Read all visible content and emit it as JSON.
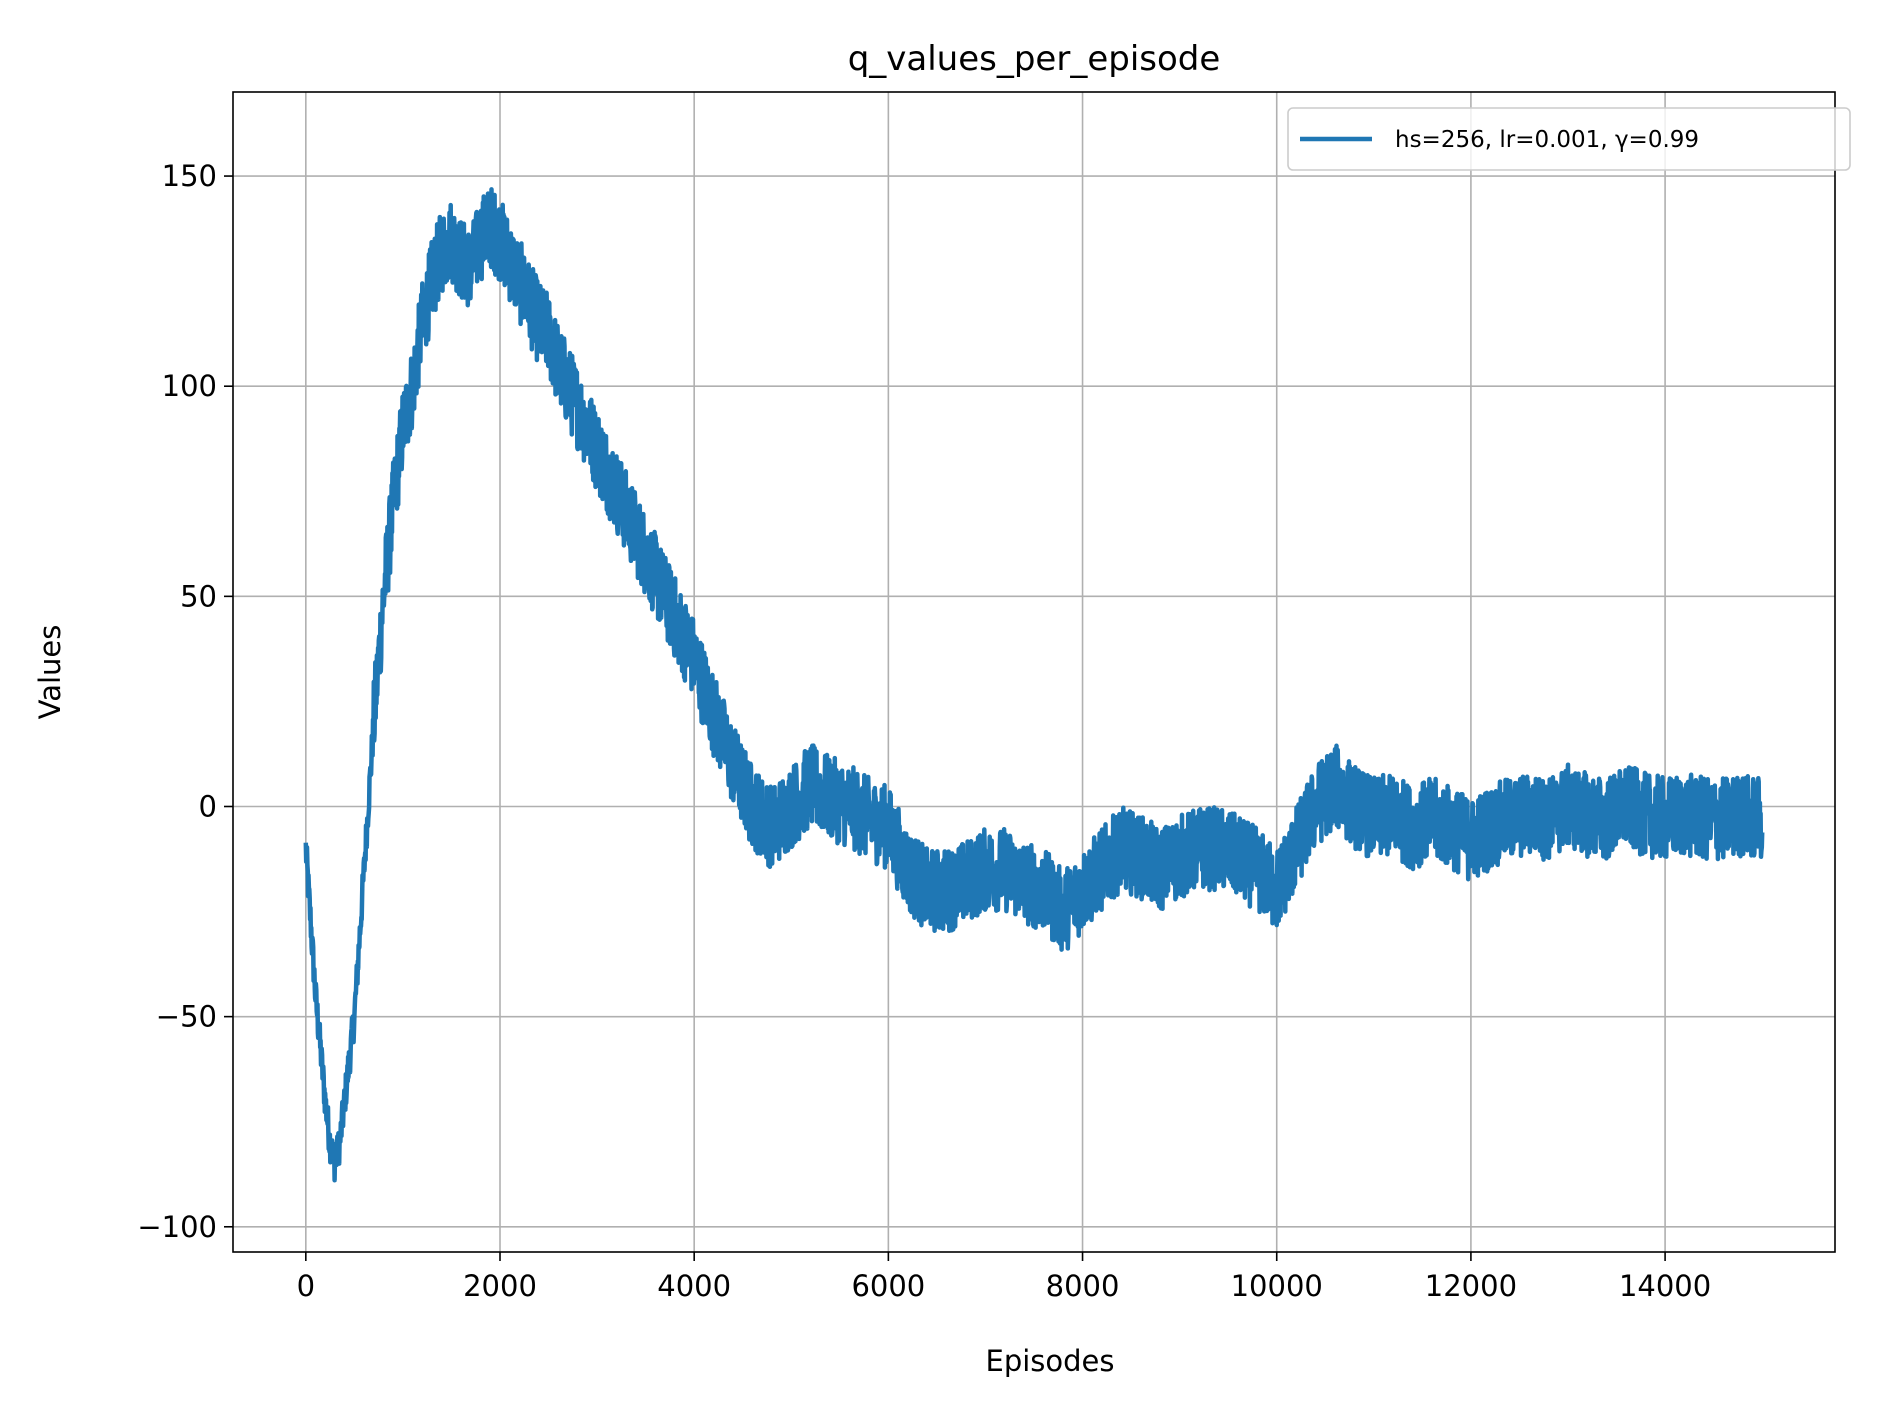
{
  "chart_data": {
    "type": "line",
    "title": "q_values_per_episode",
    "xlabel": "Episodes",
    "ylabel": "Values",
    "xlim": [
      -750,
      15750
    ],
    "ylim": [
      -106,
      170
    ],
    "xticks": [
      0,
      2000,
      4000,
      6000,
      8000,
      10000,
      12000,
      14000
    ],
    "xtick_labels": [
      "0",
      "2000",
      "4000",
      "6000",
      "8000",
      "10000",
      "12000",
      "14000"
    ],
    "yticks": [
      -100,
      -50,
      0,
      50,
      100,
      150
    ],
    "ytick_labels": [
      "−100",
      "−50",
      "0",
      "50",
      "100",
      "150"
    ],
    "grid": true,
    "legend_position": "top-right",
    "color": "#1f77b4",
    "series": [
      {
        "name": "hs=256, lr=0.001, γ=0.99",
        "color": "#1f77b4",
        "noise_amplitude": 10,
        "x": [
          0,
          100,
          200,
          250,
          300,
          350,
          400,
          500,
          600,
          700,
          800,
          900,
          1000,
          1100,
          1200,
          1300,
          1400,
          1500,
          1600,
          1700,
          1800,
          1900,
          2000,
          2100,
          2200,
          2300,
          2400,
          2500,
          2600,
          2700,
          2800,
          2900,
          3000,
          3200,
          3400,
          3600,
          3800,
          4000,
          4200,
          4400,
          4600,
          4800,
          5000,
          5200,
          5400,
          5600,
          5800,
          6000,
          6200,
          6400,
          6600,
          6800,
          7000,
          7200,
          7400,
          7600,
          7800,
          8000,
          8200,
          8400,
          8600,
          8800,
          9000,
          9200,
          9400,
          9600,
          9800,
          10000,
          10200,
          10400,
          10600,
          10800,
          11000,
          11200,
          11400,
          11600,
          11800,
          12000,
          12200,
          12400,
          12600,
          12800,
          13000,
          13200,
          13400,
          13600,
          13800,
          14000,
          14200,
          14400,
          14600,
          14800,
          15000
        ],
        "y": [
          -10,
          -45,
          -70,
          -80,
          -85,
          -80,
          -70,
          -50,
          -15,
          20,
          50,
          72,
          90,
          100,
          115,
          125,
          132,
          135,
          130,
          128,
          135,
          138,
          135,
          130,
          125,
          120,
          115,
          112,
          105,
          100,
          95,
          90,
          85,
          75,
          65,
          55,
          45,
          35,
          22,
          10,
          0,
          -5,
          0,
          5,
          2,
          0,
          -3,
          -5,
          -15,
          -20,
          -20,
          -18,
          -15,
          -15,
          -18,
          -20,
          -25,
          -20,
          -15,
          -10,
          -12,
          -15,
          -12,
          -10,
          -10,
          -12,
          -15,
          -20,
          -10,
          0,
          5,
          0,
          -3,
          -2,
          -5,
          -3,
          -5,
          -8,
          -5,
          -3,
          -2,
          -3,
          0,
          -2,
          -3,
          0,
          -2,
          -3,
          -2,
          -3,
          -3,
          -2,
          -3
        ]
      }
    ]
  }
}
